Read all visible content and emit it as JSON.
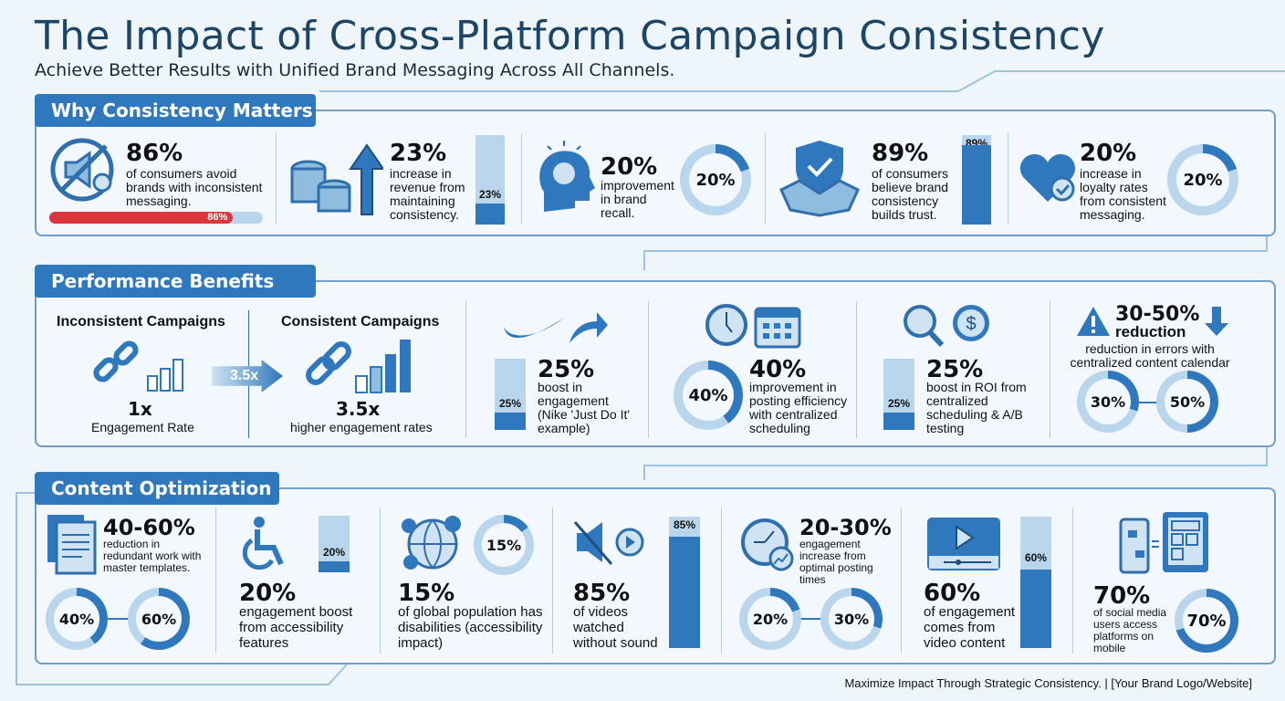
{
  "header": {
    "title": "The Impact of Cross-Platform Campaign Consistency",
    "subtitle": "Achieve Better Results with Unified Brand Messaging Across All Channels."
  },
  "colors": {
    "accent": "#2f78bd",
    "light": "#b9d6ec",
    "alert": "#d9363e",
    "title": "#1d4566"
  },
  "why": {
    "title": "Why Consistency Matters",
    "items": [
      {
        "value": "86%",
        "text": "of consumers avoid brands with inconsistent messaging.",
        "pct": 86,
        "label": "86%",
        "icon": "no-megaphone-icon"
      },
      {
        "value": "23%",
        "text": "increase in revenue from maintaining consistency.",
        "pct": 23,
        "label": "23%",
        "icon": "coins-arrow-up-icon"
      },
      {
        "value": "20%",
        "text": "improvement in brand recall.",
        "pct": 20,
        "label": "20%",
        "icon": "lightbulb-head-icon"
      },
      {
        "value": "89%",
        "text": "of consumers believe brand consistency builds trust.",
        "pct": 89,
        "label": "89%",
        "icon": "shield-handshake-icon"
      },
      {
        "value": "20%",
        "text": "increase in loyalty rates from consistent messaging.",
        "pct": 20,
        "label": "20%",
        "icon": "heart-check-icon"
      }
    ]
  },
  "performance": {
    "title": "Performance Benefits",
    "inconsistent": {
      "title": "Inconsistent Campaigns",
      "value": "1x",
      "text": "Engagement Rate",
      "icon": "broken-link-icon"
    },
    "arrow": "3.5x",
    "consistent": {
      "title": "Consistent Campaigns",
      "value": "3.5x",
      "text": "higher engagement rates",
      "icon": "chain-link-icon"
    },
    "items": [
      {
        "value": "25%",
        "text": "boost in engagement (Nike 'Just Do It' example)",
        "pct": 25,
        "label": "25%",
        "icon": "swoosh-arrow-icon"
      },
      {
        "value": "40%",
        "text": "improvement in posting efficiency with centralized scheduling",
        "pct": 40,
        "label": "40%",
        "icon": "clock-calendar-icon"
      },
      {
        "value": "25%",
        "text": "boost in ROI from centralized scheduling & A/B testing",
        "pct": 25,
        "label": "25%",
        "icon": "magnifier-dollar-icon"
      },
      {
        "value": "30-50%",
        "value2": "reduction",
        "text": "reduction in errors with centralized content calendar",
        "donuts": [
          {
            "pct": 30,
            "label": "30%"
          },
          {
            "pct": 50,
            "label": "50%"
          }
        ],
        "icon": "warning-down-icon"
      }
    ]
  },
  "content": {
    "title": "Content Optimization",
    "items": [
      {
        "value": "40-60%",
        "text": "reduction in redundant work with master templates.",
        "donuts": [
          {
            "pct": 40,
            "label": "40%"
          },
          {
            "pct": 60,
            "label": "60%"
          }
        ],
        "icon": "documents-icon"
      },
      {
        "value": "20%",
        "text": "engagement boost from accessibility features",
        "pct": 20,
        "label": "20%",
        "icon": "wheelchair-icon"
      },
      {
        "value": "15%",
        "text": "of global population has disabilities (accessibility impact)",
        "pct": 15,
        "label": "15%",
        "icon": "globe-people-icon"
      },
      {
        "value": "85%",
        "text": "of videos watched without sound",
        "pct": 85,
        "label": "85%",
        "icon": "muted-video-icon"
      },
      {
        "value": "20-30%",
        "text": "engagement increase from optimal posting times",
        "donuts": [
          {
            "pct": 20,
            "label": "20%"
          },
          {
            "pct": 30,
            "label": "30%"
          }
        ],
        "icon": "clock-trend-icon"
      },
      {
        "value": "60%",
        "text": "of engagement comes from video content",
        "pct": 60,
        "label": "60%",
        "icon": "video-player-icon"
      },
      {
        "value": "70%",
        "text": "of social media users access platforms on mobile",
        "pct": 70,
        "label": "70%",
        "icon": "phone-tablet-icon"
      }
    ]
  },
  "footer": "Maximize Impact Through Strategic Consistency. | [Your Brand Logo/Website]"
}
